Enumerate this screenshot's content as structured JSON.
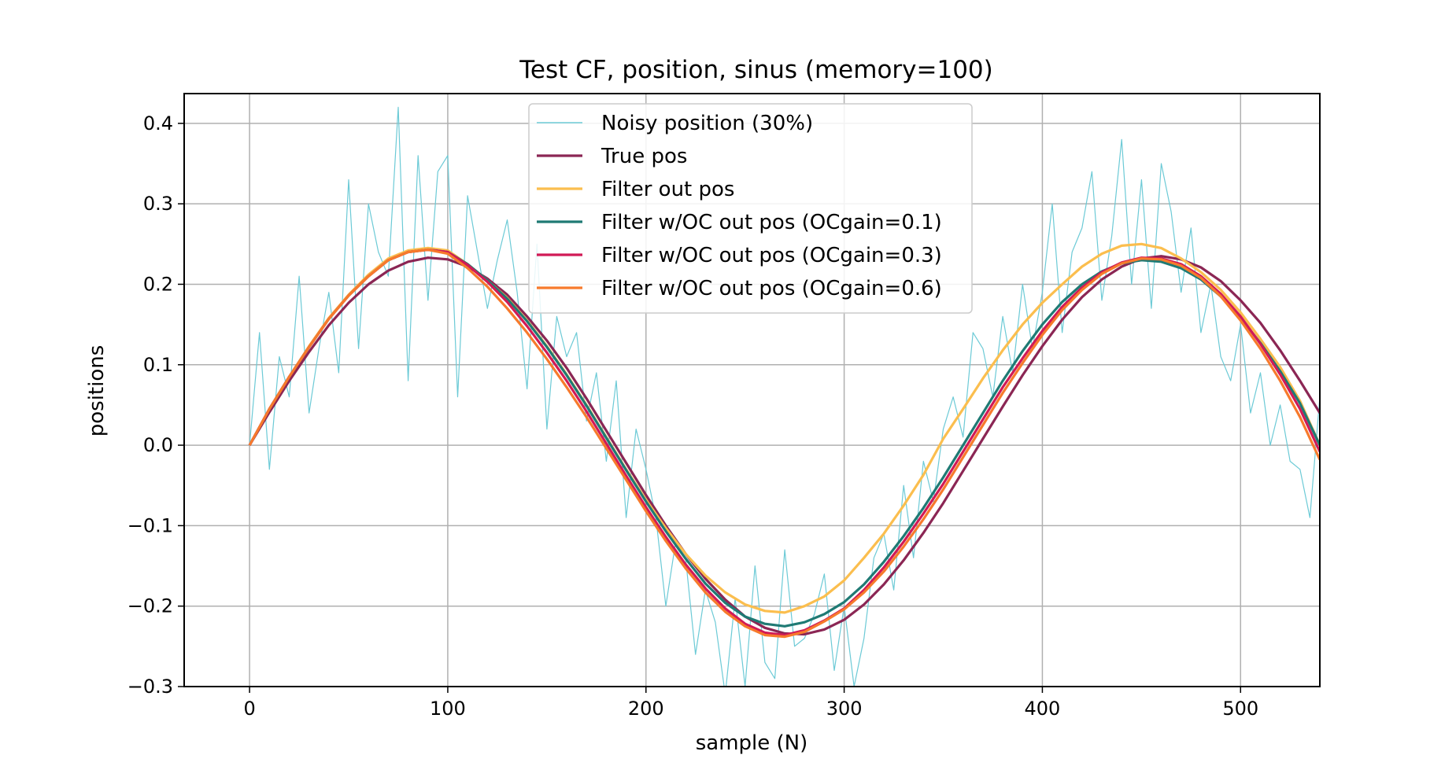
{
  "chart_data": {
    "type": "line",
    "title": "Test CF, position, sinus (memory=100)",
    "xlabel": "sample (N)",
    "ylabel": "positions",
    "xlim": [
      -33,
      540
    ],
    "ylim": [
      -0.3,
      0.437
    ],
    "xticks": [
      0,
      100,
      200,
      300,
      400,
      500
    ],
    "yticks": [
      -0.3,
      -0.2,
      -0.1,
      0.0,
      0.1,
      0.2,
      0.3,
      0.4
    ],
    "xtick_labels": [
      "0",
      "100",
      "200",
      "300",
      "400",
      "500"
    ],
    "ytick_labels": [
      "−0.3",
      "−0.2",
      "−0.1",
      "0.0",
      "0.1",
      "0.2",
      "0.3",
      "0.4"
    ],
    "grid": true,
    "legend_position": "top-center",
    "series": [
      {
        "name": "Noisy position (30%)",
        "color": "#6ccad6",
        "width": "thin",
        "x": [
          0,
          5,
          10,
          15,
          20,
          25,
          30,
          35,
          40,
          45,
          50,
          55,
          60,
          65,
          70,
          75,
          80,
          85,
          90,
          95,
          100,
          105,
          110,
          115,
          120,
          125,
          130,
          135,
          140,
          145,
          150,
          155,
          160,
          165,
          170,
          175,
          180,
          185,
          190,
          195,
          200,
          205,
          210,
          215,
          220,
          225,
          230,
          235,
          240,
          245,
          250,
          255,
          260,
          265,
          270,
          275,
          280,
          285,
          290,
          295,
          300,
          305,
          310,
          315,
          320,
          325,
          330,
          335,
          340,
          345,
          350,
          355,
          360,
          365,
          370,
          375,
          380,
          385,
          390,
          395,
          400,
          405,
          410,
          415,
          420,
          425,
          430,
          435,
          440,
          445,
          450,
          455,
          460,
          465,
          470,
          475,
          480,
          485,
          490,
          495,
          500,
          505,
          510,
          515,
          520,
          525,
          530,
          535,
          540
        ],
        "y": [
          0.0,
          0.14,
          -0.03,
          0.11,
          0.06,
          0.21,
          0.04,
          0.12,
          0.19,
          0.09,
          0.33,
          0.12,
          0.3,
          0.24,
          0.21,
          0.42,
          0.08,
          0.36,
          0.18,
          0.34,
          0.36,
          0.06,
          0.31,
          0.24,
          0.17,
          0.23,
          0.28,
          0.19,
          0.07,
          0.25,
          0.02,
          0.16,
          0.11,
          0.14,
          0.03,
          0.09,
          -0.02,
          0.08,
          -0.09,
          0.02,
          -0.03,
          -0.09,
          -0.2,
          -0.12,
          -0.14,
          -0.26,
          -0.18,
          -0.22,
          -0.31,
          -0.19,
          -0.3,
          -0.15,
          -0.27,
          -0.29,
          -0.13,
          -0.25,
          -0.24,
          -0.21,
          -0.16,
          -0.28,
          -0.2,
          -0.3,
          -0.24,
          -0.14,
          -0.11,
          -0.18,
          -0.05,
          -0.14,
          -0.02,
          -0.07,
          0.02,
          0.06,
          0.01,
          0.14,
          0.12,
          0.06,
          0.16,
          0.09,
          0.2,
          0.12,
          0.19,
          0.3,
          0.14,
          0.24,
          0.27,
          0.34,
          0.18,
          0.26,
          0.38,
          0.2,
          0.33,
          0.17,
          0.35,
          0.29,
          0.19,
          0.27,
          0.14,
          0.2,
          0.11,
          0.08,
          0.15,
          0.04,
          0.09,
          0.0,
          0.05,
          -0.02,
          -0.03,
          -0.09,
          0.06
        ]
      },
      {
        "name": "True pos",
        "color": "#8b2654",
        "x": [
          0,
          10,
          20,
          30,
          40,
          50,
          60,
          70,
          80,
          90,
          100,
          110,
          120,
          130,
          140,
          150,
          160,
          170,
          180,
          190,
          200,
          210,
          220,
          230,
          240,
          250,
          260,
          270,
          280,
          290,
          300,
          310,
          320,
          330,
          340,
          350,
          360,
          370,
          380,
          390,
          400,
          410,
          420,
          430,
          440,
          450,
          460,
          470,
          480,
          490,
          500,
          510,
          520,
          530,
          540
        ],
        "y": [
          0.0,
          0.041,
          0.08,
          0.116,
          0.149,
          0.177,
          0.2,
          0.217,
          0.228,
          0.233,
          0.231,
          0.222,
          0.207,
          0.187,
          0.16,
          0.13,
          0.096,
          0.058,
          0.018,
          -0.022,
          -0.062,
          -0.1,
          -0.135,
          -0.166,
          -0.192,
          -0.213,
          -0.227,
          -0.234,
          -0.235,
          -0.229,
          -0.217,
          -0.198,
          -0.173,
          -0.143,
          -0.109,
          -0.072,
          -0.032,
          0.008,
          0.048,
          0.087,
          0.123,
          0.156,
          0.184,
          0.206,
          0.222,
          0.232,
          0.235,
          0.231,
          0.221,
          0.204,
          0.18,
          0.152,
          0.118,
          0.08,
          0.04
        ]
      },
      {
        "name": "Filter out pos",
        "color": "#fbbe4e",
        "x": [
          0,
          10,
          20,
          30,
          40,
          50,
          60,
          70,
          80,
          90,
          100,
          110,
          120,
          130,
          140,
          150,
          160,
          170,
          180,
          190,
          200,
          210,
          220,
          230,
          240,
          250,
          260,
          270,
          280,
          290,
          300,
          310,
          320,
          330,
          340,
          350,
          360,
          370,
          380,
          390,
          400,
          410,
          420,
          430,
          440,
          450,
          460,
          470,
          480,
          490,
          500,
          510,
          520,
          530,
          540
        ],
        "y": [
          0.0,
          0.045,
          0.085,
          0.123,
          0.158,
          0.187,
          0.212,
          0.232,
          0.242,
          0.245,
          0.242,
          0.225,
          0.205,
          0.183,
          0.155,
          0.123,
          0.088,
          0.05,
          0.01,
          -0.03,
          -0.068,
          -0.103,
          -0.135,
          -0.162,
          -0.183,
          -0.198,
          -0.206,
          -0.208,
          -0.2,
          -0.188,
          -0.168,
          -0.14,
          -0.11,
          -0.075,
          -0.037,
          0.008,
          0.045,
          0.083,
          0.118,
          0.15,
          0.177,
          0.2,
          0.222,
          0.238,
          0.248,
          0.25,
          0.245,
          0.232,
          0.215,
          0.193,
          0.165,
          0.132,
          0.097,
          0.055,
          0.0
        ]
      },
      {
        "name": "Filter w/OC out pos (OCgain=0.1)",
        "color": "#1f7a74",
        "x": [
          0,
          10,
          20,
          30,
          40,
          50,
          60,
          70,
          80,
          90,
          100,
          110,
          120,
          130,
          140,
          150,
          160,
          170,
          180,
          190,
          200,
          210,
          220,
          230,
          240,
          250,
          260,
          270,
          280,
          290,
          300,
          310,
          320,
          330,
          340,
          350,
          360,
          370,
          380,
          390,
          400,
          410,
          420,
          430,
          440,
          450,
          460,
          470,
          480,
          490,
          500,
          510,
          520,
          530,
          540
        ],
        "y": [
          0.0,
          0.045,
          0.085,
          0.122,
          0.157,
          0.186,
          0.21,
          0.23,
          0.24,
          0.243,
          0.24,
          0.225,
          0.205,
          0.182,
          0.154,
          0.122,
          0.087,
          0.049,
          0.009,
          -0.031,
          -0.07,
          -0.107,
          -0.141,
          -0.172,
          -0.196,
          -0.213,
          -0.222,
          -0.225,
          -0.22,
          -0.21,
          -0.195,
          -0.173,
          -0.145,
          -0.113,
          -0.078,
          -0.04,
          0.0,
          0.04,
          0.08,
          0.117,
          0.15,
          0.178,
          0.2,
          0.216,
          0.226,
          0.23,
          0.228,
          0.22,
          0.206,
          0.185,
          0.158,
          0.127,
          0.092,
          0.052,
          0.0
        ]
      },
      {
        "name": "Filter w/OC out pos (OCgain=0.3)",
        "color": "#d11a56",
        "x": [
          0,
          10,
          20,
          30,
          40,
          50,
          60,
          70,
          80,
          90,
          100,
          110,
          120,
          130,
          140,
          150,
          160,
          170,
          180,
          190,
          200,
          210,
          220,
          230,
          240,
          250,
          260,
          270,
          280,
          290,
          300,
          310,
          320,
          330,
          340,
          350,
          360,
          370,
          380,
          390,
          400,
          410,
          420,
          430,
          440,
          450,
          460,
          470,
          480,
          490,
          500,
          510,
          520,
          530,
          540
        ],
        "y": [
          0.0,
          0.045,
          0.085,
          0.122,
          0.157,
          0.186,
          0.21,
          0.23,
          0.24,
          0.243,
          0.24,
          0.224,
          0.203,
          0.178,
          0.148,
          0.115,
          0.08,
          0.042,
          0.002,
          -0.038,
          -0.077,
          -0.114,
          -0.148,
          -0.178,
          -0.203,
          -0.222,
          -0.233,
          -0.236,
          -0.23,
          -0.218,
          -0.203,
          -0.18,
          -0.152,
          -0.12,
          -0.085,
          -0.048,
          -0.008,
          0.032,
          0.072,
          0.108,
          0.142,
          0.172,
          0.196,
          0.215,
          0.227,
          0.233,
          0.232,
          0.225,
          0.21,
          0.188,
          0.16,
          0.126,
          0.088,
          0.045,
          -0.008
        ]
      },
      {
        "name": "Filter w/OC out pos (OCgain=0.6)",
        "color": "#f77a2c",
        "x": [
          0,
          10,
          20,
          30,
          40,
          50,
          60,
          70,
          80,
          90,
          100,
          110,
          120,
          130,
          140,
          150,
          160,
          170,
          180,
          190,
          200,
          210,
          220,
          230,
          240,
          250,
          260,
          270,
          280,
          290,
          300,
          310,
          320,
          330,
          340,
          350,
          360,
          370,
          380,
          390,
          400,
          410,
          420,
          430,
          440,
          450,
          460,
          470,
          480,
          490,
          500,
          510,
          520,
          530,
          540
        ],
        "y": [
          0.0,
          0.045,
          0.085,
          0.122,
          0.157,
          0.186,
          0.21,
          0.23,
          0.24,
          0.243,
          0.238,
          0.22,
          0.197,
          0.17,
          0.14,
          0.107,
          0.072,
          0.035,
          -0.004,
          -0.043,
          -0.082,
          -0.119,
          -0.153,
          -0.183,
          -0.207,
          -0.225,
          -0.236,
          -0.238,
          -0.232,
          -0.219,
          -0.204,
          -0.183,
          -0.157,
          -0.126,
          -0.092,
          -0.055,
          -0.015,
          0.025,
          0.065,
          0.102,
          0.137,
          0.168,
          0.193,
          0.213,
          0.226,
          0.232,
          0.231,
          0.223,
          0.208,
          0.185,
          0.155,
          0.12,
          0.08,
          0.035,
          -0.018
        ]
      }
    ]
  }
}
